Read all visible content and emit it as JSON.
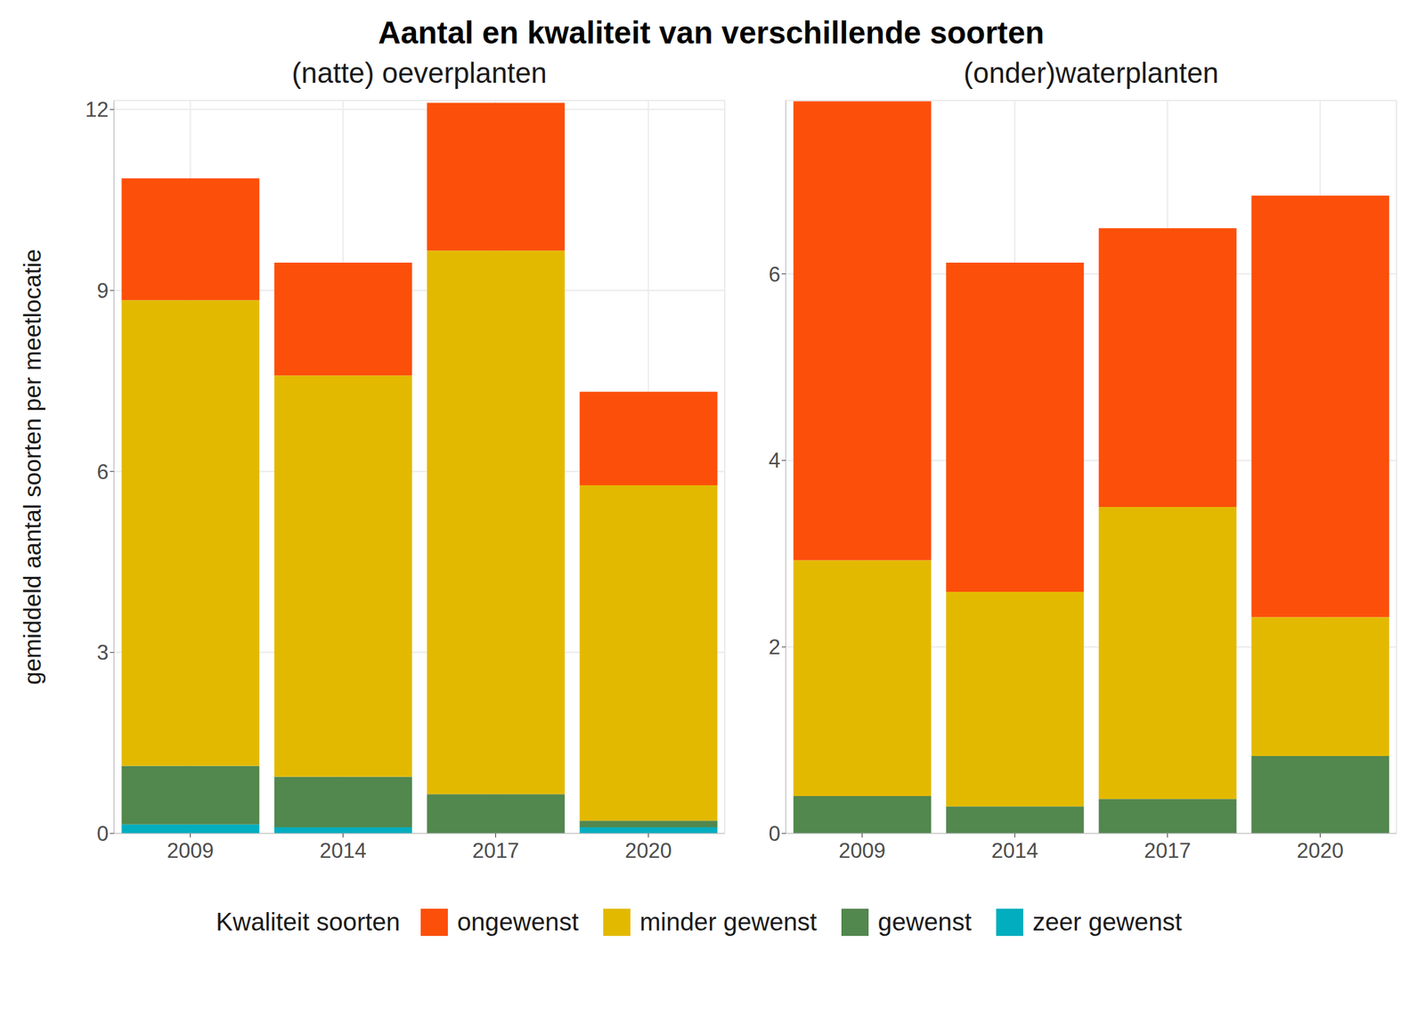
{
  "title": "Aantal en kwaliteit van verschillende soorten",
  "y_label": "gemiddeld aantal soorten per meetlocatie",
  "legend_title": "Kwaliteit soorten",
  "legend": "bottom",
  "chart_data": [
    {
      "type": "bar",
      "stacked": true,
      "grid": true,
      "subtitle": "(natte) oeverplanten",
      "categories": [
        "2009",
        "2014",
        "2017",
        "2020"
      ],
      "ylim": [
        0,
        12.15
      ],
      "yticks": [
        0,
        3,
        6,
        9,
        12
      ],
      "series": [
        {
          "name": "zeer gewenst",
          "color": "#00AEBF",
          "values": [
            0.15,
            0.1,
            0,
            0.1
          ]
        },
        {
          "name": "gewenst",
          "color": "#52874E",
          "values": [
            0.97,
            0.84,
            0.65,
            0.11
          ]
        },
        {
          "name": "minder gewenst",
          "color": "#E3B900",
          "values": [
            7.72,
            6.65,
            9.01,
            5.56
          ]
        },
        {
          "name": "ongewenst",
          "color": "#FC4F0A",
          "values": [
            2.02,
            1.87,
            2.45,
            1.55
          ]
        }
      ]
    },
    {
      "type": "bar",
      "stacked": true,
      "grid": true,
      "subtitle": "(onder)waterplanten",
      "categories": [
        "2009",
        "2014",
        "2017",
        "2020"
      ],
      "ylim": [
        0,
        7.86
      ],
      "yticks": [
        0,
        2,
        4,
        6
      ],
      "series": [
        {
          "name": "zeer gewenst",
          "color": "#00AEBF",
          "values": [
            0,
            0,
            0,
            0
          ]
        },
        {
          "name": "gewenst",
          "color": "#52874E",
          "values": [
            0.4,
            0.29,
            0.37,
            0.83
          ]
        },
        {
          "name": "minder gewenst",
          "color": "#E3B900",
          "values": [
            2.53,
            2.3,
            3.13,
            1.49
          ]
        },
        {
          "name": "ongewenst",
          "color": "#FC4F0A",
          "values": [
            4.92,
            3.53,
            2.99,
            4.52
          ]
        }
      ]
    }
  ]
}
